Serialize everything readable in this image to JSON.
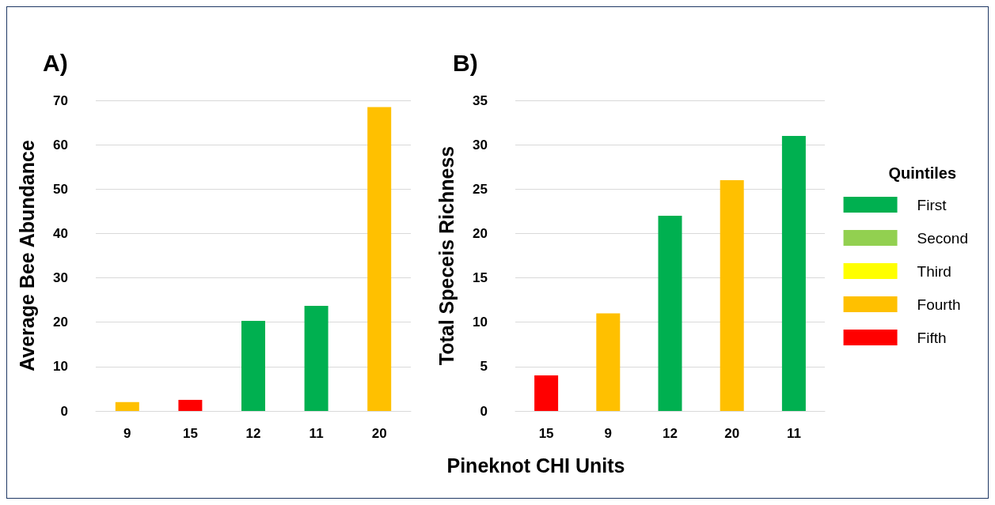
{
  "chart_data": [
    {
      "type": "bar",
      "title": "A)",
      "ylabel": "Average Bee Abundance",
      "xlabel": "Pineknot CHI Units",
      "categories": [
        "9",
        "15",
        "12",
        "11",
        "20"
      ],
      "stacked": true,
      "ylim": [
        0,
        70
      ],
      "yticks": [
        0,
        10,
        20,
        30,
        40,
        50,
        60,
        70
      ],
      "grid": "y",
      "legend": false,
      "series": [
        {
          "color": "#00b050",
          "values": [
            null,
            null,
            20.3,
            23.7,
            null
          ]
        },
        {
          "color": "#ffc000",
          "values": [
            2,
            null,
            null,
            null,
            68.5
          ]
        },
        {
          "color": "#ff0000",
          "values": [
            null,
            2.5,
            null,
            null,
            null
          ]
        }
      ]
    },
    {
      "type": "bar",
      "title": "B)",
      "ylabel": "Total Speceis Richness",
      "legend_title": "Quintiles",
      "categories": [
        "15",
        "9",
        "12",
        "20",
        "11"
      ],
      "stacked": true,
      "ylim": [
        0,
        35
      ],
      "yticks": [
        0,
        5,
        10,
        15,
        20,
        25,
        30,
        35
      ],
      "grid": "y",
      "legend": "right",
      "series": [
        {
          "name": "First",
          "color": "#00b050",
          "values": [
            null,
            null,
            22,
            null,
            31
          ]
        },
        {
          "name": "Second",
          "color": "#92d050",
          "values": [
            null,
            null,
            null,
            null,
            null
          ]
        },
        {
          "name": "Third",
          "color": "#ffff00",
          "values": [
            null,
            null,
            null,
            null,
            null
          ]
        },
        {
          "name": "Fourth",
          "color": "#ffc000",
          "values": [
            null,
            11,
            null,
            26,
            null
          ]
        },
        {
          "name": "Fifth",
          "color": "#ff0000",
          "values": [
            4,
            null,
            null,
            null,
            null
          ]
        }
      ]
    }
  ]
}
